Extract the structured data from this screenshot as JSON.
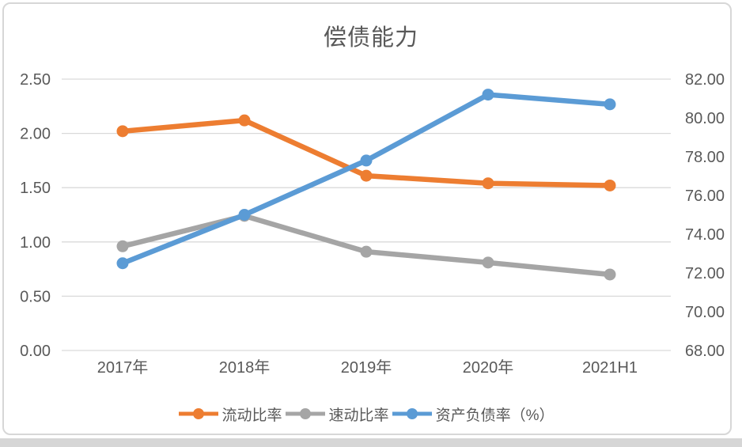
{
  "chart_data": {
    "type": "line",
    "title": "偿债能力",
    "categories": [
      "2017年",
      "2018年",
      "2019年",
      "2020年",
      "2021H1"
    ],
    "series": [
      {
        "name": "流动比率",
        "axis": "left",
        "color": "#ED7D31",
        "values": [
          2.02,
          2.12,
          1.61,
          1.54,
          1.52
        ]
      },
      {
        "name": "速动比率",
        "axis": "left",
        "color": "#A5A5A5",
        "values": [
          0.96,
          1.24,
          0.91,
          0.81,
          0.7
        ]
      },
      {
        "name": "资产负债率（%）",
        "axis": "right",
        "color": "#5B9BD5",
        "values": [
          72.5,
          75.0,
          77.8,
          81.2,
          80.7
        ]
      }
    ],
    "left_axis": {
      "min": 0,
      "max": 2.5,
      "step": 0.5,
      "ticks": [
        "2.50",
        "2.00",
        "1.50",
        "1.00",
        "0.50",
        "0.00"
      ]
    },
    "right_axis": {
      "min": 68,
      "max": 82,
      "step": 2,
      "ticks": [
        "82.00",
        "80.00",
        "78.00",
        "76.00",
        "74.00",
        "72.00",
        "70.00",
        "68.00"
      ]
    },
    "grid": true,
    "marker": "circle",
    "legend_position": "bottom"
  },
  "colors": {
    "label_text": "#595959",
    "gridline": "#D9D9D9",
    "card_border": "#D7D7D7"
  }
}
